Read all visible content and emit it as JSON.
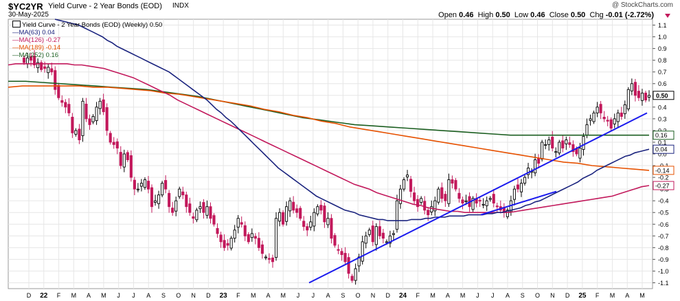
{
  "header": {
    "symbol": "$YC2YR",
    "title": "Yield Curve - 2 Year Bonds (EOD)",
    "exchange": "INDX",
    "date": "30-May-2025",
    "credit": "@ StockCharts.com",
    "open_label": "Open",
    "open": "0.46",
    "high_label": "High",
    "high": "0.50",
    "low_label": "Low",
    "low": "0.46",
    "close_label": "Close",
    "close": "0.50",
    "chg_label": "Chg",
    "chg": "-0.01 (-2.72%)"
  },
  "legend": {
    "main": "Yield Curve - 2 Year Bonds (EOD) (Weekly) 0.50",
    "ma63": "MA(63) 0.04",
    "ma126": "MA(126) -0.27",
    "ma189": "MA(189) -0.14",
    "ma252": "MA(252) 0.16"
  },
  "colors": {
    "up": "#000000",
    "down": "#c2185b",
    "ma63": "#1a237e",
    "ma126": "#c2185b",
    "ma189": "#e65100",
    "ma252": "#1b5e20",
    "trend": "#1a1aee",
    "grid": "#e6e6e6"
  },
  "chart_data": {
    "type": "candlestick",
    "title": "Yield Curve - 2 Year Bonds (EOD) (Weekly)",
    "ylim": [
      -1.15,
      1.15
    ],
    "yticks": [
      "1.1",
      "1.0",
      "0.9",
      "0.8",
      "0.7",
      "0.6",
      "0.5",
      "0.4",
      "0.3",
      "0.2",
      "0.1",
      "0.0",
      "-0.1",
      "-0.2",
      "-0.3",
      "-0.4",
      "-0.5",
      "-0.6",
      "-0.7",
      "-0.8",
      "-0.9",
      "-1.0",
      "-1.1"
    ],
    "xticks": [
      "D",
      "22",
      "F",
      "M",
      "A",
      "M",
      "J",
      "J",
      "A",
      "S",
      "O",
      "N",
      "D",
      "23",
      "F",
      "M",
      "A",
      "M",
      "J",
      "J",
      "A",
      "S",
      "O",
      "N",
      "D",
      "24",
      "F",
      "M",
      "A",
      "M",
      "J",
      "J",
      "A",
      "S",
      "O",
      "N",
      "D",
      "25",
      "F",
      "M",
      "A",
      "M"
    ],
    "last_value_tag": "0.50",
    "ma_tags": [
      {
        "name": "MA(252)",
        "value": 0.16,
        "label": "0.16"
      },
      {
        "name": "MA(63)",
        "value": 0.04,
        "label": "0.04"
      },
      {
        "name": "MA(189)",
        "value": -0.14,
        "label": -0.14
      },
      {
        "name": "MA(126)",
        "value": -0.27,
        "label": "-0.27"
      }
    ],
    "closes": [
      0.78,
      0.82,
      0.8,
      0.76,
      0.78,
      0.72,
      0.73,
      0.74,
      0.7,
      0.55,
      0.48,
      0.44,
      0.4,
      0.35,
      0.18,
      0.2,
      0.12,
      0.45,
      0.3,
      0.25,
      0.32,
      0.4,
      0.45,
      0.36,
      0.2,
      0.1,
      0.08,
      0.05,
      -0.1,
      0.0,
      -0.05,
      -0.2,
      -0.3,
      -0.3,
      -0.25,
      -0.22,
      -0.3,
      -0.45,
      -0.4,
      -0.35,
      -0.25,
      -0.3,
      -0.45,
      -0.5,
      -0.4,
      -0.3,
      -0.35,
      -0.45,
      -0.5,
      -0.55,
      -0.48,
      -0.45,
      -0.5,
      -0.45,
      -0.55,
      -0.6,
      -0.68,
      -0.75,
      -0.8,
      -0.78,
      -0.72,
      -0.65,
      -0.55,
      -0.6,
      -0.7,
      -0.75,
      -0.68,
      -0.72,
      -0.8,
      -0.85,
      -0.88,
      -0.9,
      -0.92,
      -0.55,
      -0.5,
      -0.6,
      -0.45,
      -0.4,
      -0.48,
      -0.5,
      -0.55,
      -0.62,
      -0.65,
      -0.58,
      -0.5,
      -0.45,
      -0.48,
      -0.58,
      -0.55,
      -0.72,
      -0.78,
      -0.82,
      -0.86,
      -0.92,
      -1.02,
      -1.08,
      -0.98,
      -0.88,
      -0.75,
      -0.7,
      -0.65,
      -0.75,
      -0.62,
      -0.7,
      -0.72,
      -0.75,
      -0.7,
      -0.68,
      -0.4,
      -0.3,
      -0.22,
      -0.18,
      -0.32,
      -0.4,
      -0.45,
      -0.38,
      -0.48,
      -0.52,
      -0.45,
      -0.4,
      -0.3,
      -0.38,
      -0.4,
      -0.22,
      -0.25,
      -0.3,
      -0.38,
      -0.42,
      -0.4,
      -0.45,
      -0.38,
      -0.42,
      -0.4,
      -0.43,
      -0.4,
      -0.38,
      -0.42,
      -0.45,
      -0.48,
      -0.5,
      -0.48,
      -0.4,
      -0.3,
      -0.3,
      -0.25,
      -0.2,
      -0.12,
      -0.15,
      -0.05,
      -0.08,
      0.1,
      0.08,
      0.12,
      0.05,
      0.02,
      0.1,
      0.05,
      0.12,
      0.08,
      0.02,
      0.0,
      0.05,
      0.15,
      0.25,
      0.3,
      0.35,
      0.4,
      0.35,
      0.3,
      0.28,
      0.22,
      0.3,
      0.35,
      0.32,
      0.42,
      0.55,
      0.6,
      0.5,
      0.48,
      0.52,
      0.46,
      0.5
    ],
    "ma63": [
      1.15,
      1.14,
      1.13,
      1.12,
      1.11,
      1.1,
      1.08,
      1.06,
      1.04,
      1.02,
      1.0,
      0.97,
      0.95,
      0.92,
      0.9,
      0.88,
      0.86,
      0.84,
      0.82,
      0.8,
      0.78,
      0.76,
      0.74,
      0.72,
      0.7,
      0.67,
      0.64,
      0.61,
      0.58,
      0.55,
      0.52,
      0.49,
      0.46,
      0.42,
      0.38,
      0.35,
      0.31,
      0.28,
      0.24,
      0.2,
      0.16,
      0.12,
      0.08,
      0.04,
      0.0,
      -0.04,
      -0.08,
      -0.12,
      -0.15,
      -0.18,
      -0.21,
      -0.24,
      -0.27,
      -0.3,
      -0.33,
      -0.36,
      -0.38,
      -0.4,
      -0.42,
      -0.44,
      -0.46,
      -0.48,
      -0.49,
      -0.5,
      -0.52,
      -0.53,
      -0.54,
      -0.55,
      -0.56,
      -0.56,
      -0.57,
      -0.57,
      -0.57,
      -0.57,
      -0.57,
      -0.56,
      -0.56,
      -0.56,
      -0.55,
      -0.55,
      -0.54,
      -0.54,
      -0.54,
      -0.53,
      -0.53,
      -0.53,
      -0.53,
      -0.52,
      -0.52,
      -0.52,
      -0.52,
      -0.51,
      -0.51,
      -0.5,
      -0.5,
      -0.49,
      -0.48,
      -0.47,
      -0.46,
      -0.44,
      -0.43,
      -0.41,
      -0.4,
      -0.38,
      -0.36,
      -0.34,
      -0.32,
      -0.3,
      -0.28,
      -0.26,
      -0.24,
      -0.21,
      -0.19,
      -0.17,
      -0.14,
      -0.12,
      -0.1,
      -0.08,
      -0.06,
      -0.04,
      -0.02,
      -0.01,
      0.01,
      0.02,
      0.03,
      0.04
    ],
    "ma126": [
      0.76,
      0.77,
      0.77,
      0.77,
      0.77,
      0.77,
      0.77,
      0.77,
      0.77,
      0.76,
      0.76,
      0.75,
      0.74,
      0.73,
      0.71,
      0.69,
      0.67,
      0.65,
      0.62,
      0.59,
      0.56,
      0.53,
      0.5,
      0.46,
      0.43,
      0.4,
      0.37,
      0.34,
      0.31,
      0.28,
      0.25,
      0.22,
      0.19,
      0.16,
      0.13,
      0.1,
      0.07,
      0.04,
      0.01,
      -0.02,
      -0.05,
      -0.08,
      -0.11,
      -0.14,
      -0.17,
      -0.2,
      -0.23,
      -0.26,
      -0.28,
      -0.3,
      -0.33,
      -0.35,
      -0.37,
      -0.39,
      -0.41,
      -0.43,
      -0.44,
      -0.46,
      -0.47,
      -0.48,
      -0.49,
      -0.49,
      -0.5,
      -0.5,
      -0.5,
      -0.5,
      -0.5,
      -0.5,
      -0.5,
      -0.49,
      -0.48,
      -0.47,
      -0.46,
      -0.45,
      -0.44,
      -0.43,
      -0.42,
      -0.41,
      -0.4,
      -0.39,
      -0.38,
      -0.37,
      -0.36,
      -0.34,
      -0.32,
      -0.3,
      -0.28,
      -0.27
    ],
    "ma189": [
      0.57,
      0.58,
      0.58,
      0.58,
      0.58,
      0.58,
      0.57,
      0.57,
      0.56,
      0.55,
      0.54,
      0.52,
      0.51,
      0.49,
      0.47,
      0.45,
      0.43,
      0.41,
      0.38,
      0.36,
      0.33,
      0.31,
      0.28,
      0.26,
      0.23,
      0.21,
      0.19,
      0.17,
      0.15,
      0.13,
      0.11,
      0.09,
      0.07,
      0.05,
      0.03,
      0.01,
      -0.01,
      -0.03,
      -0.05,
      -0.07,
      -0.08,
      -0.1,
      -0.11,
      -0.12,
      -0.13,
      -0.14
    ],
    "ma252": [
      0.62,
      0.62,
      0.61,
      0.6,
      0.59,
      0.58,
      0.57,
      0.56,
      0.55,
      0.53,
      0.51,
      0.49,
      0.46,
      0.43,
      0.4,
      0.37,
      0.34,
      0.31,
      0.29,
      0.27,
      0.25,
      0.24,
      0.23,
      0.22,
      0.21,
      0.2,
      0.19,
      0.18,
      0.17,
      0.16,
      0.16,
      0.16,
      0.16,
      0.16,
      0.16,
      0.16,
      0.16,
      0.16
    ]
  }
}
